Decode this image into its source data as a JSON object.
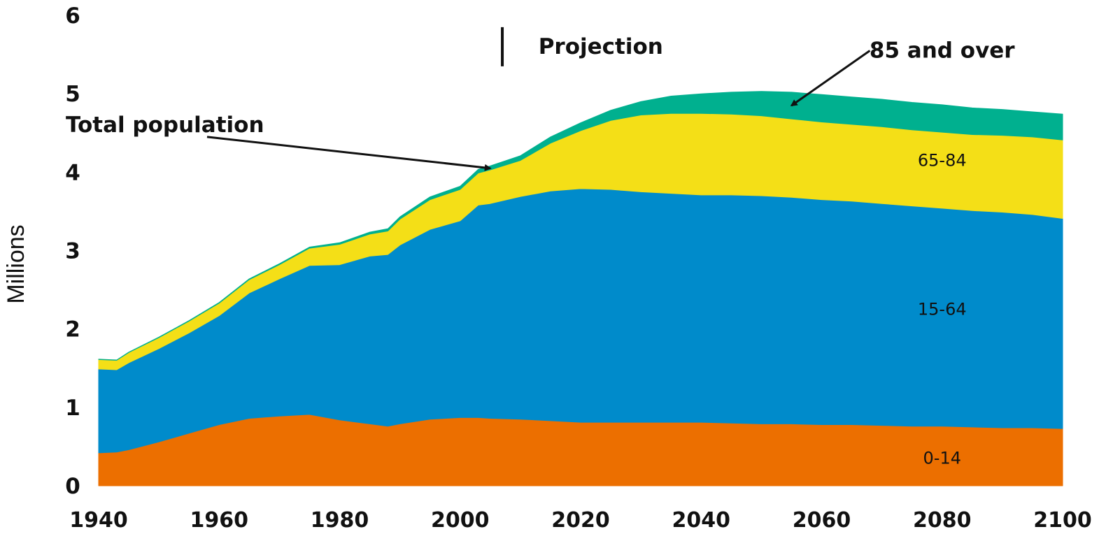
{
  "chart_data": {
    "type": "area",
    "stacked": true,
    "title": "",
    "xlabel": "",
    "ylabel": "Millions",
    "xlim": [
      1940,
      2100
    ],
    "ylim": [
      0,
      6
    ],
    "grid": false,
    "x_ticks": [
      "1940",
      "1960",
      "1980",
      "2000",
      "2020",
      "2040",
      "2060",
      "2080",
      "2100"
    ],
    "y_ticks": [
      "0",
      "1",
      "2",
      "3",
      "4",
      "5",
      "6"
    ],
    "x": [
      1940,
      1943,
      1945,
      1950,
      1955,
      1960,
      1965,
      1970,
      1975,
      1980,
      1985,
      1988,
      1990,
      1995,
      2000,
      2003,
      2005,
      2010,
      2015,
      2020,
      2025,
      2030,
      2035,
      2040,
      2045,
      2050,
      2055,
      2060,
      2065,
      2070,
      2075,
      2080,
      2085,
      2090,
      2095,
      2100
    ],
    "series": [
      {
        "name": "0-14",
        "color": "#ec6f00",
        "values": [
          0.42,
          0.43,
          0.46,
          0.56,
          0.67,
          0.78,
          0.86,
          0.89,
          0.91,
          0.84,
          0.79,
          0.76,
          0.79,
          0.85,
          0.87,
          0.87,
          0.86,
          0.85,
          0.83,
          0.81,
          0.81,
          0.81,
          0.81,
          0.81,
          0.8,
          0.79,
          0.79,
          0.78,
          0.78,
          0.77,
          0.76,
          0.76,
          0.75,
          0.74,
          0.74,
          0.73
        ]
      },
      {
        "name": "15-64",
        "color": "#008bcb",
        "values": [
          1.07,
          1.05,
          1.11,
          1.19,
          1.28,
          1.39,
          1.6,
          1.75,
          1.9,
          1.98,
          2.14,
          2.19,
          2.28,
          2.42,
          2.51,
          2.71,
          2.74,
          2.84,
          2.93,
          2.98,
          2.97,
          2.94,
          2.92,
          2.9,
          2.91,
          2.91,
          2.89,
          2.87,
          2.85,
          2.83,
          2.81,
          2.78,
          2.76,
          2.75,
          2.72,
          2.68
        ]
      },
      {
        "name": "65-84",
        "color": "#f4df17",
        "values": [
          0.12,
          0.12,
          0.13,
          0.14,
          0.15,
          0.16,
          0.17,
          0.18,
          0.22,
          0.26,
          0.28,
          0.3,
          0.33,
          0.38,
          0.4,
          0.41,
          0.43,
          0.46,
          0.61,
          0.74,
          0.88,
          0.98,
          1.02,
          1.04,
          1.03,
          1.02,
          1.0,
          0.99,
          0.98,
          0.98,
          0.97,
          0.97,
          0.97,
          0.98,
          0.99,
          1.0
        ]
      },
      {
        "name": "85 and over",
        "color": "#00b08f",
        "values": [
          0.005,
          0.005,
          0.005,
          0.006,
          0.007,
          0.008,
          0.01,
          0.012,
          0.015,
          0.02,
          0.025,
          0.028,
          0.03,
          0.035,
          0.04,
          0.045,
          0.05,
          0.06,
          0.08,
          0.1,
          0.13,
          0.17,
          0.22,
          0.25,
          0.28,
          0.31,
          0.34,
          0.35,
          0.35,
          0.35,
          0.35,
          0.35,
          0.34,
          0.33,
          0.32,
          0.33
        ]
      }
    ],
    "label_positions": {
      "0-14": [
        2080,
        0.35
      ],
      "15-64": [
        2080,
        2.25
      ],
      "65-84": [
        2080,
        4.15
      ],
      "85 and over": [
        2085,
        5.55
      ]
    },
    "annotations": [
      {
        "text": "Total population",
        "text_at": [
          1951,
          4.6
        ],
        "arrow_from": [
          1958,
          4.45
        ],
        "arrow_to": [
          2005,
          4.05
        ]
      },
      {
        "text": "85 and over",
        "text_at": [
          2080,
          5.55
        ],
        "arrow_from": [
          2068,
          5.55
        ],
        "arrow_to": [
          2055,
          4.85
        ]
      }
    ],
    "projection_marker": {
      "text": "Projection",
      "x": 2007,
      "y_range": [
        5.85,
        5.35
      ],
      "text_at": [
        2013,
        5.6
      ]
    }
  }
}
